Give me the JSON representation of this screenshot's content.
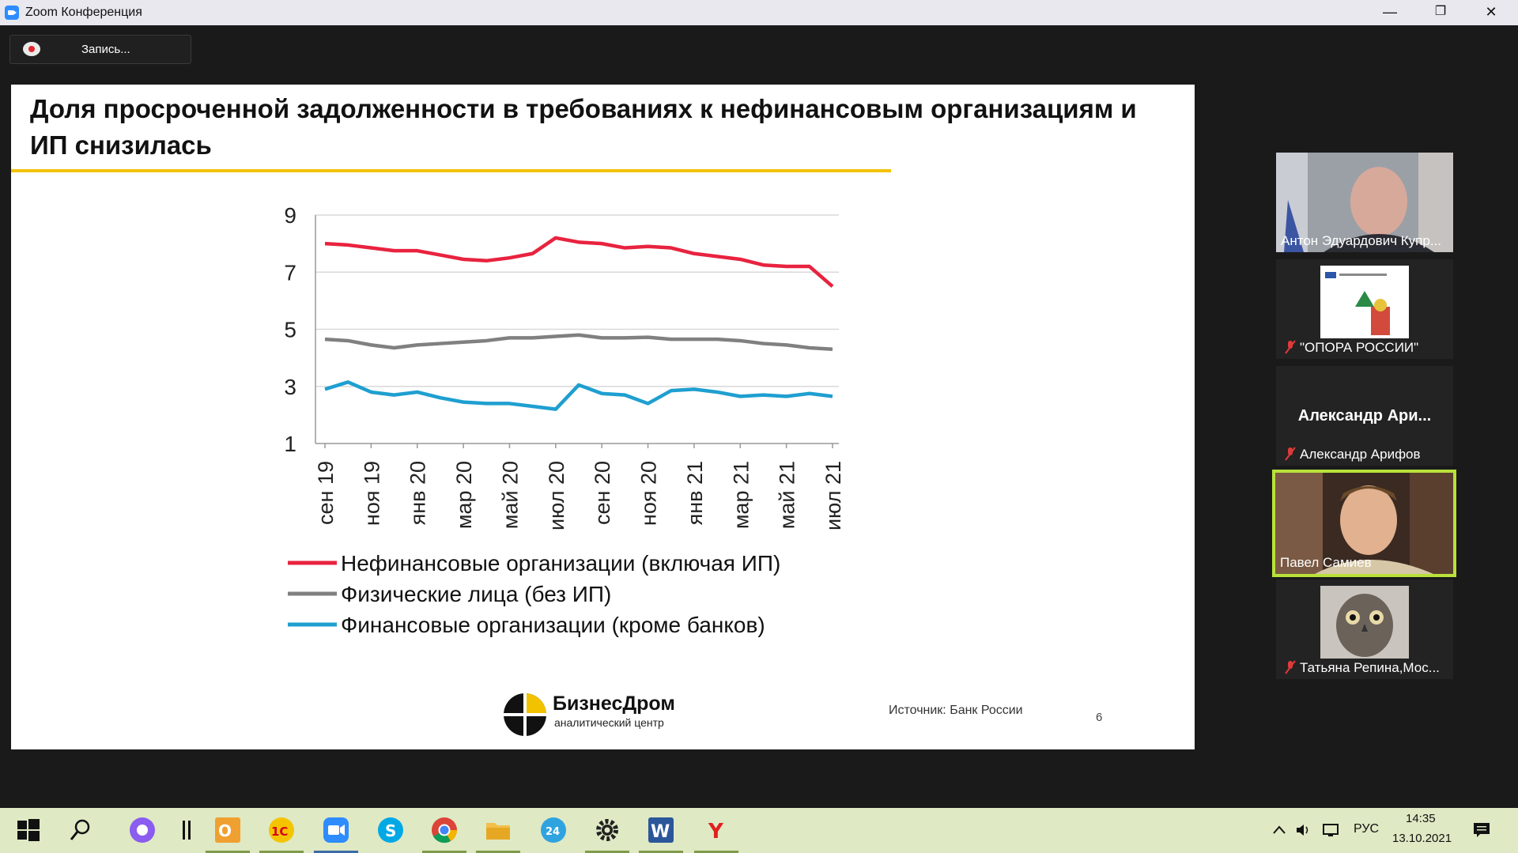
{
  "window": {
    "title": "Zoom Конференция",
    "controls": {
      "minimize": "—",
      "restore": "❐",
      "close": "✕"
    }
  },
  "recording": {
    "label": "Запись..."
  },
  "slide": {
    "title": "Доля просроченной задолженности в требованиях к нефинансовым организациям и ИП снизилась",
    "brand_name": "БизнесДром",
    "brand_sub": "аналитический центр",
    "source": "Источник:  Банк России",
    "page_number": "6"
  },
  "chart_data": {
    "type": "line",
    "title": "",
    "xlabel": "",
    "ylabel": "",
    "ylim": [
      1,
      9
    ],
    "y_ticks": [
      1,
      3,
      5,
      7,
      9
    ],
    "x": [
      "сен 19",
      "окт 19",
      "ноя 19",
      "дек 19",
      "янв 20",
      "фев 20",
      "мар 20",
      "апр 20",
      "май 20",
      "июн 20",
      "июл 20",
      "авг 20",
      "сен 20",
      "окт 20",
      "ноя 20",
      "дек 20",
      "янв 21",
      "фев 21",
      "мар 21",
      "апр 21",
      "май 21",
      "июн 21",
      "июл 21"
    ],
    "x_tick_labels": [
      "сен 19",
      "ноя 19",
      "янв 20",
      "мар 20",
      "май 20",
      "июл 20",
      "сен 20",
      "ноя 20",
      "янв 21",
      "мар 21",
      "май 21",
      "июл 21"
    ],
    "legend_position": "bottom",
    "series": [
      {
        "name": "Нефинансовые организации (включая ИП)",
        "color": "#e8233f",
        "values": [
          8.0,
          7.95,
          7.85,
          7.75,
          7.75,
          7.6,
          7.45,
          7.4,
          7.5,
          7.65,
          8.2,
          8.05,
          8.0,
          7.85,
          7.9,
          7.85,
          7.65,
          7.55,
          7.45,
          7.25,
          7.2,
          7.2,
          6.5
        ]
      },
      {
        "name": "Физические лица (без ИП)",
        "color": "#808080",
        "values": [
          4.65,
          4.6,
          4.45,
          4.35,
          4.45,
          4.5,
          4.55,
          4.6,
          4.7,
          4.7,
          4.75,
          4.8,
          4.7,
          4.7,
          4.72,
          4.65,
          4.65,
          4.65,
          4.6,
          4.5,
          4.45,
          4.35,
          4.3
        ]
      },
      {
        "name": "Финансовые организации (кроме банков)",
        "color": "#1f9fd0",
        "values": [
          2.9,
          3.15,
          2.8,
          2.7,
          2.8,
          2.6,
          2.45,
          2.4,
          2.4,
          2.3,
          2.2,
          3.05,
          2.75,
          2.7,
          2.4,
          2.85,
          2.9,
          2.8,
          2.65,
          2.7,
          2.65,
          2.75,
          2.65
        ]
      }
    ]
  },
  "participants": [
    {
      "name": "Антон Эдуардович Купр...",
      "type": "video"
    },
    {
      "name": "\"ОПОРА РОССИИ\"",
      "type": "image",
      "muted": true
    },
    {
      "display": "Александр  Ари...",
      "name": "Александр Арифов",
      "type": "name",
      "muted": true
    },
    {
      "name": "Павел Самиев",
      "type": "video",
      "active": true
    },
    {
      "name": "Татьяна Репина,Мос...",
      "type": "image",
      "muted": true
    }
  ],
  "taskbar": {
    "language": "РУС",
    "time": "14:35",
    "date": "13.10.2021",
    "apps": [
      "start-icon",
      "search-icon",
      "cortana-icon",
      "task-view-icon",
      "outlook-icon",
      "1c-icon",
      "zoom-icon",
      "skype-icon",
      "chrome-icon",
      "explorer-icon",
      "24-icon",
      "settings-icon",
      "word-icon",
      "yandex-icon"
    ]
  }
}
